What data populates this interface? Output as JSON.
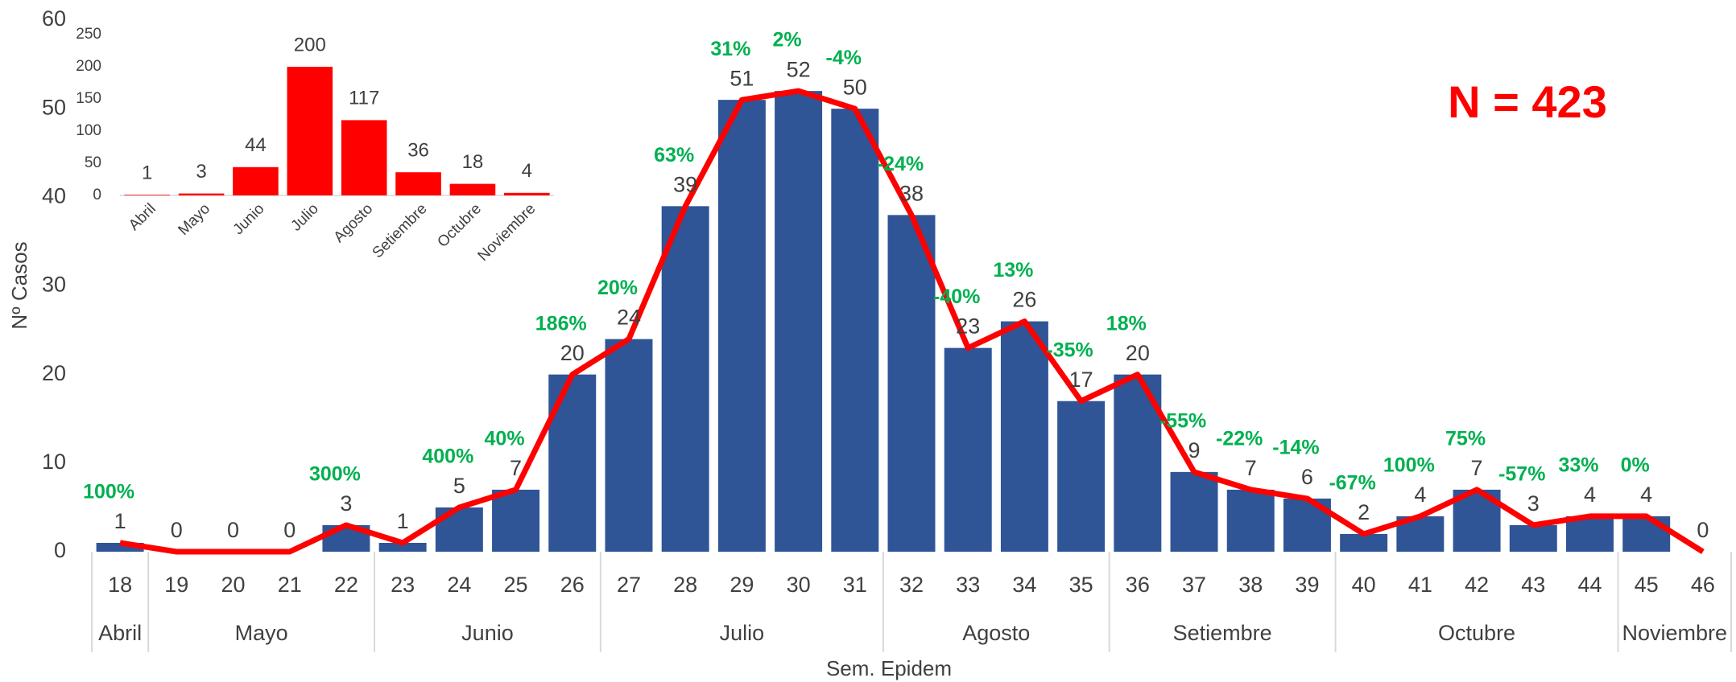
{
  "chart_data": [
    {
      "type": "combo",
      "x_label": "Sem. Epidem",
      "y_label": "Nº Casos",
      "annotation": "N = 423",
      "categories": [
        "18",
        "19",
        "20",
        "21",
        "22",
        "23",
        "24",
        "25",
        "26",
        "27",
        "28",
        "29",
        "30",
        "31",
        "32",
        "33",
        "34",
        "35",
        "36",
        "37",
        "38",
        "39",
        "40",
        "41",
        "42",
        "43",
        "44",
        "45",
        "46"
      ],
      "values": [
        1,
        0,
        0,
        0,
        3,
        1,
        5,
        7,
        20,
        24,
        39,
        51,
        52,
        50,
        38,
        23,
        26,
        17,
        20,
        9,
        7,
        6,
        2,
        4,
        7,
        3,
        4,
        4,
        0
      ],
      "pct_labels": [
        "100%",
        null,
        null,
        null,
        "300%",
        null,
        "400%",
        "40%",
        "186%",
        "20%",
        "63%",
        "31%",
        "2%",
        "-4%",
        "-24%",
        "-40%",
        "13%",
        "-35%",
        "18%",
        "-55%",
        "-22%",
        "-14%",
        "-67%",
        "100%",
        "75%",
        "-57%",
        "33%",
        "0%",
        null
      ],
      "groups": [
        {
          "label": "Abril",
          "from": "18",
          "to": "18"
        },
        {
          "label": "Mayo",
          "from": "19",
          "to": "22"
        },
        {
          "label": "Junio",
          "from": "23",
          "to": "26"
        },
        {
          "label": "Julio",
          "from": "27",
          "to": "31"
        },
        {
          "label": "Agosto",
          "from": "32",
          "to": "35"
        },
        {
          "label": "Setiembre",
          "from": "36",
          "to": "39"
        },
        {
          "label": "Octubre",
          "from": "40",
          "to": "44"
        },
        {
          "label": "Noviembre",
          "from": "45",
          "to": "46"
        }
      ],
      "bar_color": "#2F5597",
      "line_color": "#FF0000",
      "pct_color": "#00B050",
      "ylim": [
        0,
        60
      ],
      "yticks": [
        0,
        10,
        20,
        30,
        40,
        50,
        60
      ],
      "grid": false
    },
    {
      "type": "bar",
      "categories": [
        "Abril",
        "Mayo",
        "Junio",
        "Julio",
        "Agosto",
        "Setiembre",
        "Octubre",
        "Noviembre"
      ],
      "values": [
        1,
        3,
        44,
        200,
        117,
        36,
        18,
        4
      ],
      "color": "#FF0000",
      "ylim": [
        0,
        250
      ],
      "yticks": [
        0,
        50,
        100,
        150,
        200,
        250
      ],
      "grid": false
    }
  ]
}
